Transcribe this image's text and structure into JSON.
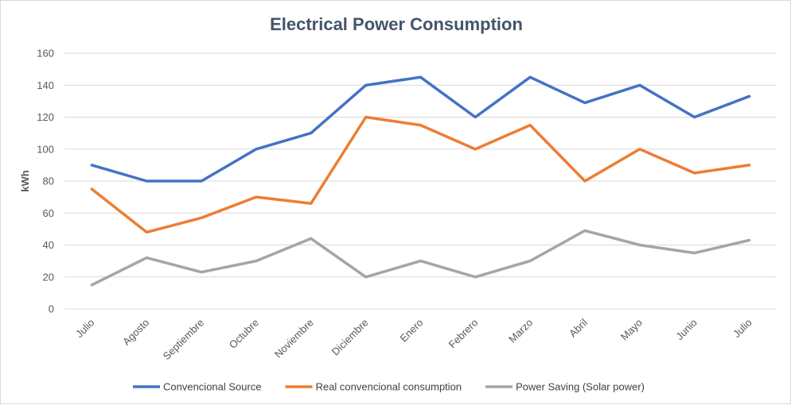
{
  "chart_data": {
    "type": "line",
    "title": "Electrical Power Consumption",
    "xlabel": "",
    "ylabel": "kWh",
    "ylim": [
      0,
      160
    ],
    "yticks": [
      0,
      20,
      40,
      60,
      80,
      100,
      120,
      140,
      160
    ],
    "grid": true,
    "legend_position": "bottom",
    "categories": [
      "Julio",
      "Agosto",
      "Septiembre",
      "Octubre",
      "Noviembre",
      "Diciembre",
      "Enero",
      "Febrero",
      "Marzo",
      "Abril",
      "Mayo",
      "Junio",
      "Julio"
    ],
    "series": [
      {
        "name": "Convencional Source",
        "color": "#4472c4",
        "values": [
          90,
          80,
          80,
          100,
          110,
          140,
          145,
          120,
          145,
          129,
          140,
          120,
          133
        ]
      },
      {
        "name": "Real convencional consumption",
        "color": "#ed7d31",
        "values": [
          75,
          48,
          57,
          70,
          66,
          120,
          115,
          100,
          115,
          80,
          100,
          85,
          90
        ]
      },
      {
        "name": "Power Saving (Solar power)",
        "color": "#a5a5a5",
        "values": [
          15,
          32,
          23,
          30,
          44,
          20,
          30,
          20,
          30,
          49,
          40,
          35,
          43
        ]
      }
    ]
  }
}
